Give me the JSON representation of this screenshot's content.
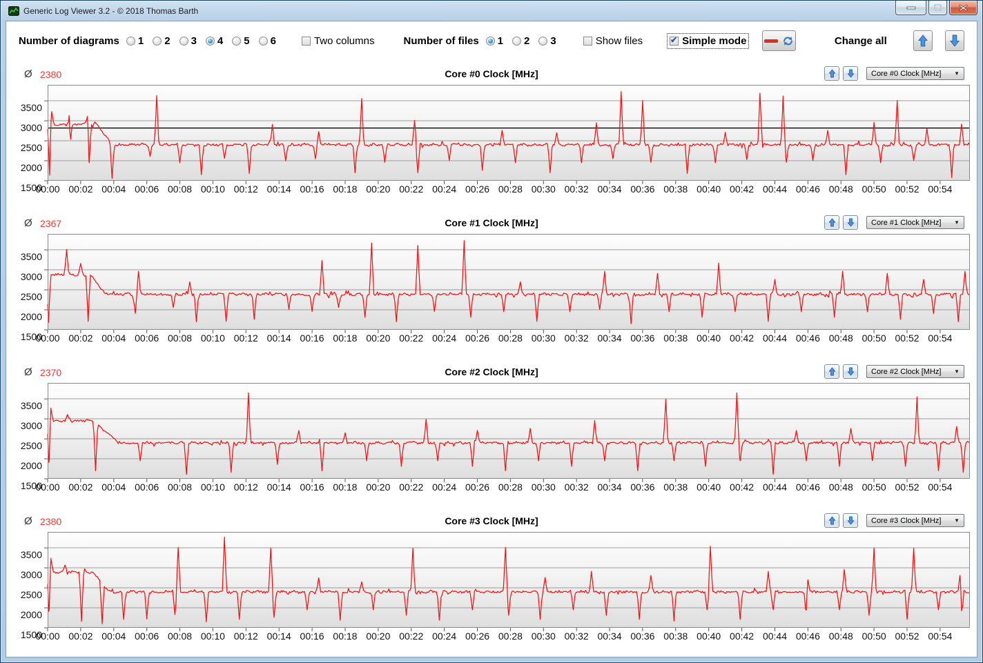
{
  "window": {
    "title": "Generic Log Viewer 3.2 - © 2018 Thomas Barth"
  },
  "toolbar": {
    "diagrams_label": "Number of diagrams",
    "diagram_options": [
      "1",
      "2",
      "3",
      "4",
      "5",
      "6"
    ],
    "diagrams_selected": "4",
    "two_columns_label": "Two columns",
    "two_columns_checked": false,
    "files_label": "Number of files",
    "file_options": [
      "1",
      "2",
      "3"
    ],
    "files_selected": "1",
    "show_files_label": "Show files",
    "show_files_checked": false,
    "simple_mode_label": "Simple mode",
    "simple_mode_checked": true,
    "change_all_label": "Change all"
  },
  "colors": {
    "line_red": "#f21313",
    "avg_red": "#e63b30",
    "arrow_blue": "#4d92de",
    "grid_gray": "#9b9b9b",
    "frame_gray": "#8a8a8a",
    "marker_black": "#000000"
  },
  "chart_data": {
    "type": "line",
    "shared": {
      "x_tick_labels": [
        "00:00",
        "00:02",
        "00:04",
        "00:06",
        "00:08",
        "00:10",
        "00:12",
        "00:14",
        "00:16",
        "00:18",
        "00:20",
        "00:22",
        "00:24",
        "00:26",
        "00:28",
        "00:30",
        "00:32",
        "00:34",
        "00:36",
        "00:38",
        "00:40",
        "00:42",
        "00:44",
        "00:46",
        "00:48",
        "00:50",
        "00:52",
        "00:54"
      ],
      "x_minutes_per_tick": 2,
      "x_domain": [
        0,
        55.8
      ],
      "y_ticks": [
        1500,
        2000,
        2500,
        3000,
        3500
      ],
      "y_domain": [
        1500,
        3900
      ],
      "grid": true,
      "unit": "MHz"
    },
    "charts": [
      {
        "title": "Core #0 Clock [MHz]",
        "dropdown_value": "Core #0 Clock [MHz]",
        "avg_symbol": "Ø",
        "avg": "2380",
        "marker_line": 2820,
        "baseline": 2400,
        "noise": 45,
        "start": {
          "until": 2.95,
          "value": 2910,
          "noise": 38
        },
        "settle_at": 3.9,
        "down_spikes": [
          [
            0.12,
            1640
          ],
          [
            1.35,
            2010
          ],
          [
            2.5,
            1660
          ],
          [
            3.9,
            1560
          ],
          [
            6.2,
            2110
          ],
          [
            8.0,
            1950
          ],
          [
            9.3,
            1650
          ],
          [
            10.7,
            2060
          ],
          [
            12.2,
            1680
          ],
          [
            14.4,
            2000
          ],
          [
            16.2,
            2050
          ],
          [
            18.6,
            1700
          ],
          [
            20.4,
            1960
          ],
          [
            22.4,
            1700
          ],
          [
            24.3,
            2010
          ],
          [
            26.3,
            1760
          ],
          [
            28.3,
            1950
          ],
          [
            30.4,
            1700
          ],
          [
            32.3,
            1950
          ],
          [
            34.2,
            2050
          ],
          [
            36.5,
            1960
          ],
          [
            38.7,
            1680
          ],
          [
            40.4,
            1950
          ],
          [
            42.3,
            2030
          ],
          [
            44.7,
            1960
          ],
          [
            46.3,
            2010
          ],
          [
            48.3,
            1650
          ],
          [
            50.4,
            1950
          ],
          [
            52.4,
            2010
          ],
          [
            54.7,
            1580
          ]
        ],
        "up_spikes": [
          [
            0.25,
            3230
          ],
          [
            1.3,
            3130
          ],
          [
            2.4,
            3110
          ],
          [
            6.6,
            3630
          ],
          [
            13.6,
            2910
          ],
          [
            16.4,
            2730
          ],
          [
            19.0,
            3560
          ],
          [
            22.2,
            3010
          ],
          [
            27.5,
            2760
          ],
          [
            30.8,
            2700
          ],
          [
            33.2,
            2950
          ],
          [
            34.7,
            3730
          ],
          [
            36.0,
            3510
          ],
          [
            41.0,
            2710
          ],
          [
            43.1,
            3690
          ],
          [
            44.5,
            3620
          ],
          [
            47.2,
            2760
          ],
          [
            50.0,
            2960
          ],
          [
            51.4,
            3510
          ],
          [
            53.2,
            2810
          ],
          [
            55.3,
            2920
          ]
        ]
      },
      {
        "title": "Core #1 Clock [MHz]",
        "dropdown_value": "Core #1 Clock [MHz]",
        "avg_symbol": "Ø",
        "avg": "2367",
        "marker_line": null,
        "baseline": 2390,
        "noise": 45,
        "start": {
          "until": 2.6,
          "value": 2880,
          "noise": 40
        },
        "settle_at": 3.5,
        "down_spikes": [
          [
            0.05,
            1680
          ],
          [
            2.45,
            1710
          ],
          [
            5.3,
            1910
          ],
          [
            7.6,
            2060
          ],
          [
            9.0,
            1700
          ],
          [
            10.8,
            1710
          ],
          [
            12.5,
            1760
          ],
          [
            14.6,
            2010
          ],
          [
            16.0,
            1960
          ],
          [
            17.6,
            2060
          ],
          [
            19.2,
            1810
          ],
          [
            21.1,
            1700
          ],
          [
            23.4,
            1960
          ],
          [
            25.6,
            1810
          ],
          [
            27.6,
            1950
          ],
          [
            29.6,
            1710
          ],
          [
            31.6,
            1950
          ],
          [
            33.4,
            2010
          ],
          [
            35.3,
            1650
          ],
          [
            37.6,
            1950
          ],
          [
            39.6,
            1810
          ],
          [
            41.6,
            1950
          ],
          [
            43.6,
            1710
          ],
          [
            45.6,
            1950
          ],
          [
            47.6,
            1810
          ],
          [
            49.6,
            1950
          ],
          [
            51.6,
            1760
          ],
          [
            53.6,
            1910
          ],
          [
            55.1,
            1700
          ]
        ],
        "up_spikes": [
          [
            1.15,
            3510
          ],
          [
            2.0,
            3160
          ],
          [
            5.5,
            2960
          ],
          [
            8.6,
            2700
          ],
          [
            16.6,
            3230
          ],
          [
            19.6,
            3670
          ],
          [
            22.4,
            3610
          ],
          [
            25.2,
            3730
          ],
          [
            28.6,
            2700
          ],
          [
            33.7,
            2960
          ],
          [
            36.9,
            2910
          ],
          [
            40.6,
            3170
          ],
          [
            44.0,
            2760
          ],
          [
            48.1,
            2960
          ],
          [
            50.8,
            2910
          ],
          [
            53.0,
            2760
          ],
          [
            55.5,
            2960
          ]
        ]
      },
      {
        "title": "Core #2 Clock [MHz]",
        "dropdown_value": "Core #2 Clock [MHz]",
        "avg_symbol": "Ø",
        "avg": "2370",
        "marker_line": null,
        "baseline": 2400,
        "noise": 42,
        "start": {
          "until": 2.8,
          "value": 2950,
          "noise": 42
        },
        "settle_at": 4.3,
        "down_spikes": [
          [
            0.1,
            1600
          ],
          [
            2.9,
            1700
          ],
          [
            5.6,
            1950
          ],
          [
            8.4,
            1610
          ],
          [
            11.1,
            1660
          ],
          [
            13.9,
            1860
          ],
          [
            16.6,
            1700
          ],
          [
            19.3,
            1950
          ],
          [
            21.4,
            1810
          ],
          [
            23.6,
            1950
          ],
          [
            25.7,
            1810
          ],
          [
            27.7,
            1700
          ],
          [
            29.7,
            1950
          ],
          [
            31.7,
            1810
          ],
          [
            33.7,
            1950
          ],
          [
            35.7,
            1700
          ],
          [
            37.9,
            1950
          ],
          [
            39.8,
            1810
          ],
          [
            41.9,
            1950
          ],
          [
            43.9,
            1610
          ],
          [
            45.9,
            1950
          ],
          [
            47.9,
            1810
          ],
          [
            49.9,
            1950
          ],
          [
            51.9,
            1810
          ],
          [
            53.9,
            1700
          ],
          [
            55.4,
            1660
          ]
        ],
        "up_spikes": [
          [
            0.2,
            3270
          ],
          [
            1.2,
            3110
          ],
          [
            12.15,
            3650
          ],
          [
            15.2,
            2710
          ],
          [
            18.0,
            2650
          ],
          [
            22.9,
            2990
          ],
          [
            26.0,
            2710
          ],
          [
            29.2,
            2760
          ],
          [
            33.1,
            2960
          ],
          [
            37.4,
            3490
          ],
          [
            41.7,
            3650
          ],
          [
            45.3,
            2710
          ],
          [
            48.6,
            2760
          ],
          [
            52.6,
            3550
          ],
          [
            55.0,
            2810
          ]
        ]
      },
      {
        "title": "Core #3 Clock [MHz]",
        "dropdown_value": "Core #3 Clock [MHz]",
        "avg_symbol": "Ø",
        "avg": "2380",
        "marker_line": null,
        "baseline": 2400,
        "noise": 44,
        "start": {
          "until": 2.75,
          "value": 2890,
          "noise": 40
        },
        "settle_at": 3.7,
        "down_spikes": [
          [
            0.1,
            1620
          ],
          [
            2.05,
            1660
          ],
          [
            3.3,
            1600
          ],
          [
            4.6,
            1710
          ],
          [
            6.0,
            1720
          ],
          [
            7.7,
            1830
          ],
          [
            9.6,
            1650
          ],
          [
            11.6,
            1710
          ],
          [
            13.7,
            1760
          ],
          [
            15.7,
            1950
          ],
          [
            17.7,
            1690
          ],
          [
            19.7,
            1950
          ],
          [
            21.7,
            1810
          ],
          [
            23.7,
            1690
          ],
          [
            25.7,
            1950
          ],
          [
            27.9,
            1810
          ],
          [
            29.8,
            1710
          ],
          [
            31.8,
            1950
          ],
          [
            33.8,
            1810
          ],
          [
            35.8,
            1710
          ],
          [
            37.9,
            1670
          ],
          [
            39.9,
            1950
          ],
          [
            41.9,
            1710
          ],
          [
            43.9,
            1950
          ],
          [
            45.9,
            1710
          ],
          [
            47.9,
            1950
          ],
          [
            49.7,
            1810
          ],
          [
            52.0,
            1710
          ],
          [
            53.9,
            1950
          ],
          [
            55.3,
            1660
          ]
        ],
        "up_spikes": [
          [
            0.2,
            3240
          ],
          [
            1.05,
            3070
          ],
          [
            7.9,
            3510
          ],
          [
            10.7,
            3770
          ],
          [
            13.5,
            3490
          ],
          [
            16.4,
            2750
          ],
          [
            19.0,
            2650
          ],
          [
            22.1,
            3490
          ],
          [
            27.7,
            3510
          ],
          [
            30.1,
            2760
          ],
          [
            32.9,
            2910
          ],
          [
            36.5,
            2810
          ],
          [
            40.1,
            3540
          ],
          [
            43.6,
            2910
          ],
          [
            46.0,
            2700
          ],
          [
            48.2,
            2960
          ],
          [
            50.0,
            3500
          ],
          [
            52.4,
            3490
          ],
          [
            55.2,
            2810
          ]
        ]
      }
    ]
  }
}
